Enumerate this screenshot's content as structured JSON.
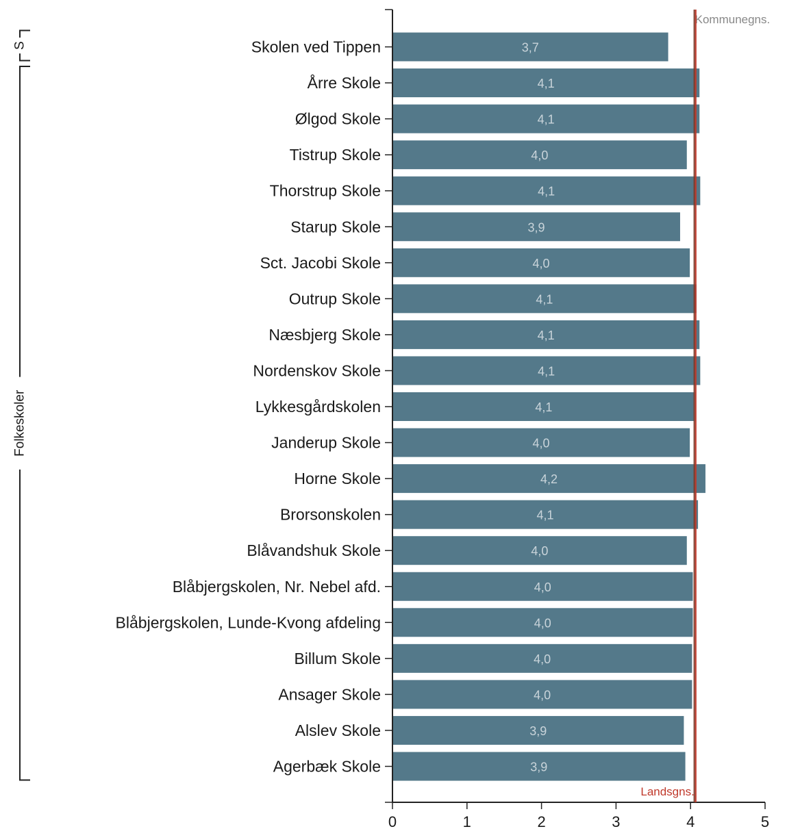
{
  "chart_data": {
    "type": "bar",
    "orientation": "horizontal",
    "categories": [
      "Skolen ved Tippen",
      "Årre Skole",
      "Ølgod Skole",
      "Tistrup Skole",
      "Thorstrup Skole",
      "Starup Skole",
      "Sct. Jacobi Skole",
      "Outrup Skole",
      "Næsbjerg Skole",
      "Nordenskov Skole",
      "Lykkesgårdskolen",
      "Janderup Skole",
      "Horne Skole",
      "Brorsonskolen",
      "Blåvandshuk Skole",
      "Blåbjergskolen, Nr. Nebel afd.",
      "Blåbjergskolen, Lunde-Kvong afdeling",
      "Billum Skole",
      "Ansager Skole",
      "Alslev Skole",
      "Agerbæk Skole"
    ],
    "values": [
      3.7,
      4.12,
      4.12,
      3.95,
      4.13,
      3.86,
      3.99,
      4.08,
      4.12,
      4.13,
      4.06,
      3.99,
      4.2,
      4.1,
      3.95,
      4.03,
      4.03,
      4.02,
      4.02,
      3.91,
      3.93
    ],
    "value_labels": [
      "3,7",
      "4,1",
      "4,1",
      "4,0",
      "4,1",
      "3,9",
      "4,0",
      "4,1",
      "4,1",
      "4,1",
      "4,1",
      "4,0",
      "4,2",
      "4,1",
      "4,0",
      "4,0",
      "4,0",
      "4,0",
      "4,0",
      "3,9",
      "3,9"
    ],
    "xlim": [
      0,
      5
    ],
    "xticks": [
      0,
      1,
      2,
      3,
      4,
      5
    ],
    "xlabel": "",
    "ylabel": "",
    "groups": [
      {
        "label": "S",
        "first": 0,
        "last": 0
      },
      {
        "label": "Folkeskoler",
        "first": 1,
        "last": 20
      }
    ],
    "reference_lines": [
      {
        "label": "Kommunegns.",
        "value": 4.05,
        "color": "#7a3a2a",
        "label_color": "#888888",
        "label_position": "top-right"
      },
      {
        "label": "Landsgns.",
        "value": 4.07,
        "color": "#c0392b",
        "label_color": "#c0392b",
        "label_position": "bottom-left"
      }
    ],
    "colors": {
      "bar": "#54798a",
      "axis": "#222222",
      "value_text": "#c9d4da"
    },
    "grid": false,
    "legend": "none"
  }
}
